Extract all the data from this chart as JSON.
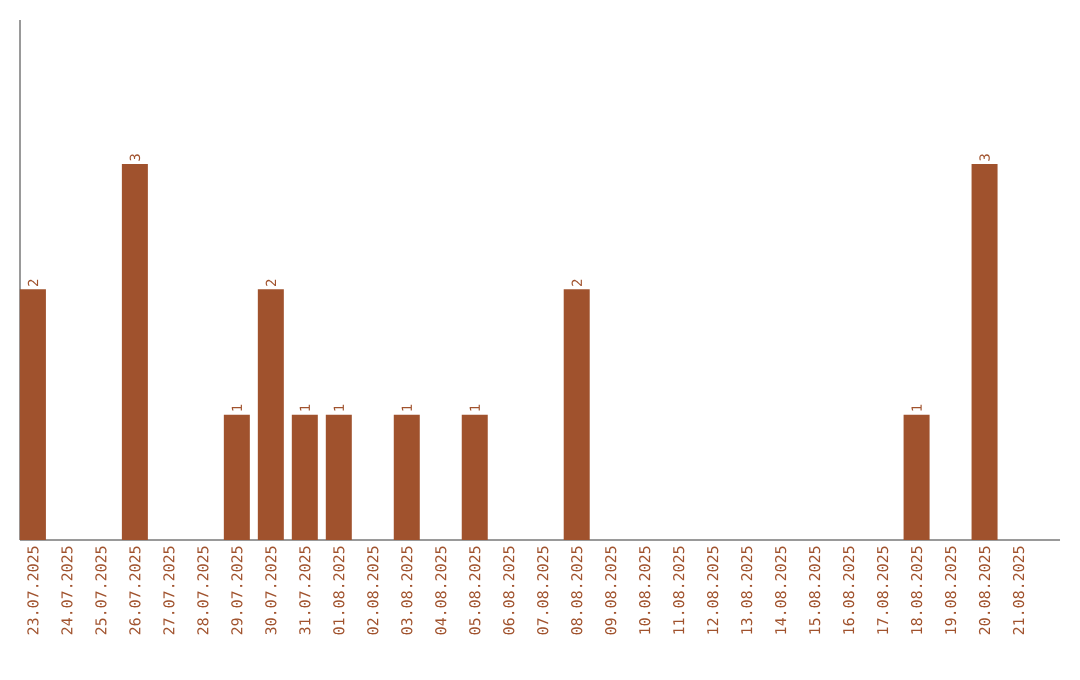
{
  "chart_data": {
    "type": "bar",
    "relative": false,
    "categories": [
      "23.07.2025",
      "24.07.2025",
      "25.07.2025",
      "26.07.2025",
      "27.07.2025",
      "28.07.2025",
      "29.07.2025",
      "30.07.2025",
      "31.07.2025",
      "01.08.2025",
      "02.08.2025",
      "03.08.2025",
      "04.08.2025",
      "05.08.2025",
      "06.08.2025",
      "07.08.2025",
      "08.08.2025",
      "09.08.2025",
      "10.08.2025",
      "11.08.2025",
      "12.08.2025",
      "13.08.2025",
      "14.08.2025",
      "15.08.2025",
      "16.08.2025",
      "17.08.2025",
      "18.08.2025",
      "19.08.2025",
      "20.08.2025",
      "21.08.2025"
    ],
    "values": [
      2,
      0,
      0,
      3,
      0,
      0,
      1,
      2,
      1,
      1,
      0,
      1,
      0,
      1,
      0,
      0,
      2,
      0,
      0,
      0,
      0,
      0,
      0,
      0,
      0,
      0,
      1,
      0,
      3,
      0
    ],
    "value_labels": [
      "2",
      null,
      null,
      "3",
      null,
      null,
      "1",
      "2",
      "1",
      "1",
      null,
      "1",
      null,
      "1",
      null,
      null,
      "2",
      null,
      null,
      null,
      null,
      null,
      null,
      null,
      null,
      null,
      "1",
      null,
      "3",
      null
    ],
    "color": "#a0522d",
    "grid": false
  }
}
